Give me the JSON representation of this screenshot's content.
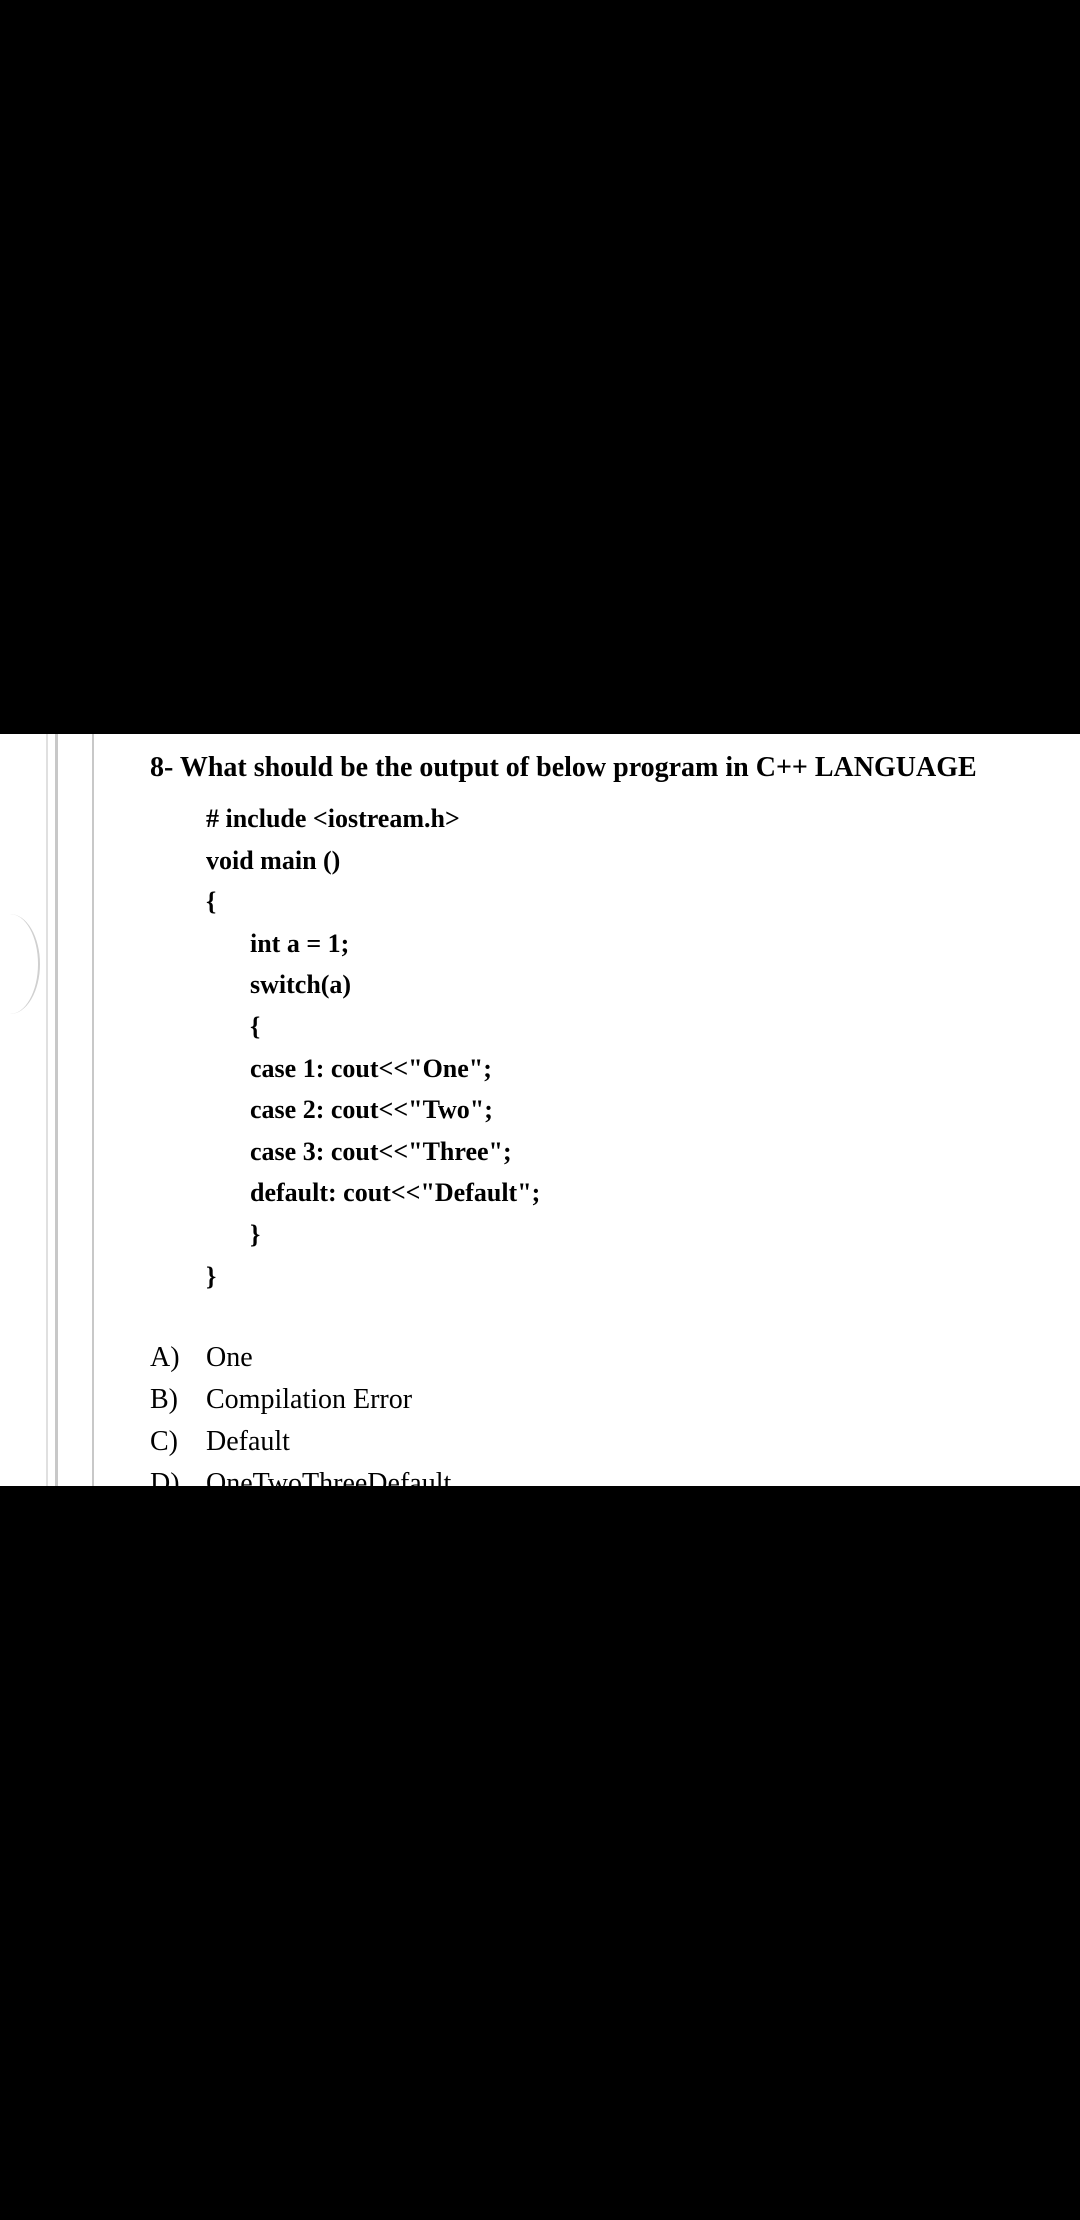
{
  "question": {
    "title": "8- What should be the output of below program in C++ LANGUAGE",
    "code": {
      "line1": "# include <iostream.h>",
      "line2": "void main ()",
      "line3": "{",
      "line4": "int a = 1;",
      "line5": "switch(a)",
      "line6": "{",
      "line7": "case 1: cout<<\"One\";",
      "line8": "case 2: cout<<\"Two\";",
      "line9": "case 3: cout<<\"Three\";",
      "line10": "default: cout<<\"Default\";",
      "line11": "}",
      "line12": "}"
    },
    "answers": {
      "a": {
        "letter": "A)",
        "text": "One"
      },
      "b": {
        "letter": "B)",
        "text": "Compilation Error"
      },
      "c": {
        "letter": "C)",
        "text": "Default"
      },
      "d": {
        "letter": "D)",
        "text": "OneTwoThreeDefault"
      }
    }
  },
  "colors": {
    "background": "#000000",
    "content_bg": "#ffffff",
    "text": "#000000",
    "border": "#c8c8c8"
  },
  "typography": {
    "title_fontsize": 28,
    "code_fontsize": 26,
    "answer_fontsize": 28,
    "font_family": "Times New Roman"
  }
}
